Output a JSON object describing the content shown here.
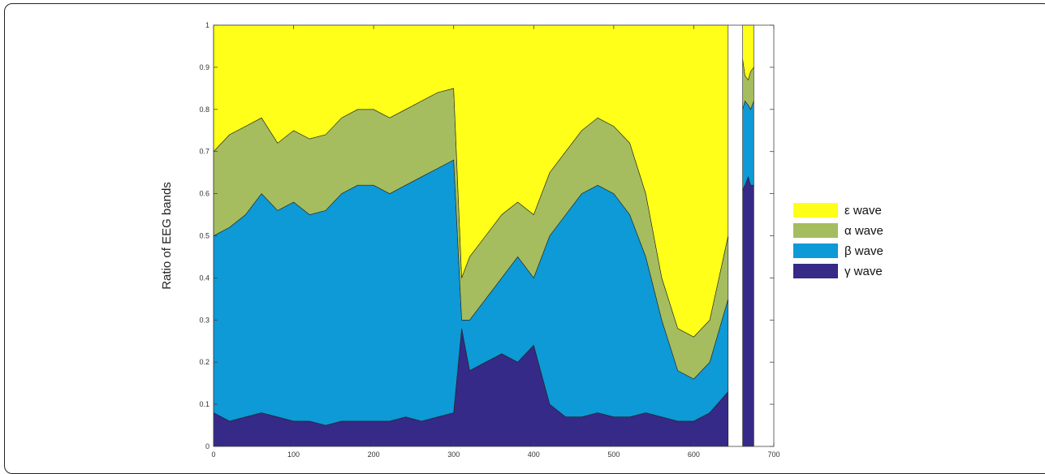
{
  "chart_data": {
    "type": "area",
    "stacked": true,
    "title": "",
    "xlabel": "",
    "ylabel": "Ratio of EEG bands",
    "xlim": [
      0,
      700
    ],
    "ylim": [
      0,
      1
    ],
    "x_ticks": [
      0,
      100,
      200,
      300,
      400,
      500,
      600,
      700
    ],
    "y_ticks": [
      0,
      0.1,
      0.2,
      0.3,
      0.4,
      0.5,
      0.6,
      0.7,
      0.8,
      0.9,
      1
    ],
    "grid": false,
    "legend_position": "right",
    "series": [
      {
        "name": "γ wave",
        "color": "#352a87"
      },
      {
        "name": "β wave",
        "color": "#0d9ad6"
      },
      {
        "name": "α wave",
        "color": "#a5bd5e"
      },
      {
        "name": "ε wave",
        "color": "#ffff1a"
      }
    ],
    "segments": [
      {
        "x": [
          0,
          20,
          40,
          60,
          80,
          100,
          120,
          140,
          160,
          180,
          200,
          220,
          240,
          260,
          280,
          300,
          310,
          320,
          340,
          360,
          380,
          400,
          420,
          440,
          460,
          480,
          500,
          520,
          540,
          560,
          580,
          600,
          620,
          643
        ],
        "cumulative": [
          [
            0.08,
            0.06,
            0.07,
            0.08,
            0.07,
            0.06,
            0.06,
            0.05,
            0.06,
            0.06,
            0.06,
            0.06,
            0.07,
            0.06,
            0.07,
            0.08,
            0.28,
            0.18,
            0.2,
            0.22,
            0.2,
            0.24,
            0.1,
            0.07,
            0.07,
            0.08,
            0.07,
            0.07,
            0.08,
            0.07,
            0.06,
            0.06,
            0.08,
            0.13
          ],
          [
            0.5,
            0.52,
            0.55,
            0.6,
            0.56,
            0.58,
            0.55,
            0.56,
            0.6,
            0.62,
            0.62,
            0.6,
            0.62,
            0.64,
            0.66,
            0.68,
            0.3,
            0.3,
            0.35,
            0.4,
            0.45,
            0.4,
            0.5,
            0.55,
            0.6,
            0.62,
            0.6,
            0.55,
            0.45,
            0.3,
            0.18,
            0.16,
            0.2,
            0.35
          ],
          [
            0.7,
            0.74,
            0.76,
            0.78,
            0.72,
            0.75,
            0.73,
            0.74,
            0.78,
            0.8,
            0.8,
            0.78,
            0.8,
            0.82,
            0.84,
            0.85,
            0.4,
            0.45,
            0.5,
            0.55,
            0.58,
            0.55,
            0.65,
            0.7,
            0.75,
            0.78,
            0.76,
            0.72,
            0.6,
            0.4,
            0.28,
            0.26,
            0.3,
            0.5
          ],
          [
            1,
            1,
            1,
            1,
            1,
            1,
            1,
            1,
            1,
            1,
            1,
            1,
            1,
            1,
            1,
            1,
            1,
            1,
            1,
            1,
            1,
            1,
            1,
            1,
            1,
            1,
            1,
            1,
            1,
            1,
            1,
            1,
            1,
            1
          ]
        ]
      },
      {
        "x": [
          661,
          664,
          668,
          671,
          675
        ],
        "cumulative": [
          [
            0.61,
            0.62,
            0.64,
            0.62,
            0.62
          ],
          [
            0.8,
            0.82,
            0.81,
            0.8,
            0.82
          ],
          [
            0.92,
            0.88,
            0.87,
            0.89,
            0.9
          ],
          [
            1,
            1,
            1,
            1,
            1
          ]
        ]
      }
    ]
  }
}
